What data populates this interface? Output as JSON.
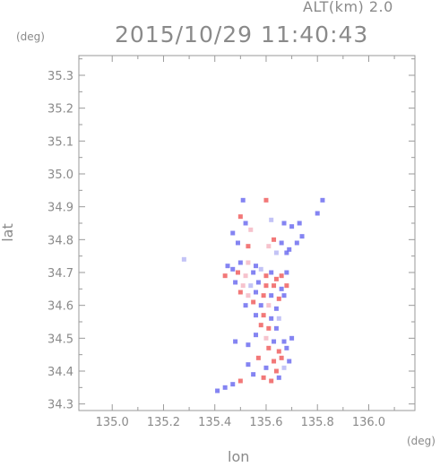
{
  "header": {
    "alt_label": "ALT(km)",
    "alt_value": "2.0",
    "timestamp": "2015/10/29 11:40:43"
  },
  "colors": {
    "axis": "#9a9a9a",
    "positive": "#f06060",
    "negative": "#6f6ff0",
    "weak_pos": "#f4b8c4",
    "weak_neg": "#b8b8f4"
  },
  "chart_data": {
    "type": "scatter",
    "title": "",
    "xlabel": "lon",
    "ylabel": "lat",
    "x_unit": "(deg)",
    "y_unit": "(deg)",
    "xlim": [
      134.87,
      136.18
    ],
    "ylim": [
      34.28,
      35.36
    ],
    "xticks": [
      135.0,
      135.2,
      135.4,
      135.6,
      135.8,
      136.0
    ],
    "xtick_labels": [
      "135.0",
      "135.2",
      "135.4",
      "135.6",
      "135.8",
      "136.0"
    ],
    "yticks": [
      34.3,
      34.4,
      34.5,
      34.6,
      34.7,
      34.8,
      34.9,
      35.0,
      35.1,
      35.2,
      35.3
    ],
    "ytick_labels": [
      "34.3",
      "34.4",
      "34.5",
      "34.6",
      "34.7",
      "34.8",
      "34.9",
      "35.0",
      "35.1",
      "35.2",
      "35.3"
    ],
    "grid": false,
    "points": [
      {
        "x": 135.51,
        "y": 34.92,
        "v": -1
      },
      {
        "x": 135.6,
        "y": 34.92,
        "v": 1
      },
      {
        "x": 135.82,
        "y": 34.92,
        "v": -1
      },
      {
        "x": 135.8,
        "y": 34.88,
        "v": -1
      },
      {
        "x": 135.5,
        "y": 34.87,
        "v": 1
      },
      {
        "x": 135.52,
        "y": 34.85,
        "v": -1
      },
      {
        "x": 135.54,
        "y": 34.83,
        "v": 0.5
      },
      {
        "x": 135.47,
        "y": 34.82,
        "v": -1
      },
      {
        "x": 135.49,
        "y": 34.79,
        "v": -1
      },
      {
        "x": 135.53,
        "y": 34.78,
        "v": 1
      },
      {
        "x": 135.62,
        "y": 34.86,
        "v": -0.5
      },
      {
        "x": 135.67,
        "y": 34.85,
        "v": -1
      },
      {
        "x": 135.7,
        "y": 34.84,
        "v": -1
      },
      {
        "x": 135.73,
        "y": 34.85,
        "v": -1
      },
      {
        "x": 135.63,
        "y": 34.8,
        "v": 1
      },
      {
        "x": 135.61,
        "y": 34.78,
        "v": 0.5
      },
      {
        "x": 135.66,
        "y": 34.79,
        "v": -1
      },
      {
        "x": 135.69,
        "y": 34.77,
        "v": -1
      },
      {
        "x": 135.72,
        "y": 34.79,
        "v": -1
      },
      {
        "x": 135.74,
        "y": 34.81,
        "v": -1
      },
      {
        "x": 135.68,
        "y": 34.76,
        "v": -1
      },
      {
        "x": 135.64,
        "y": 34.76,
        "v": -0.5
      },
      {
        "x": 135.28,
        "y": 34.74,
        "v": -0.5
      },
      {
        "x": 135.47,
        "y": 34.71,
        "v": -1
      },
      {
        "x": 135.44,
        "y": 34.69,
        "v": 1
      },
      {
        "x": 135.45,
        "y": 34.72,
        "v": -1
      },
      {
        "x": 135.5,
        "y": 34.73,
        "v": -1
      },
      {
        "x": 135.53,
        "y": 34.73,
        "v": 0.5
      },
      {
        "x": 135.56,
        "y": 34.72,
        "v": -1
      },
      {
        "x": 135.49,
        "y": 34.7,
        "v": 1
      },
      {
        "x": 135.52,
        "y": 34.69,
        "v": 0.5
      },
      {
        "x": 135.55,
        "y": 34.7,
        "v": -1
      },
      {
        "x": 135.58,
        "y": 34.71,
        "v": -0.5
      },
      {
        "x": 135.6,
        "y": 34.69,
        "v": 1
      },
      {
        "x": 135.62,
        "y": 34.7,
        "v": -1
      },
      {
        "x": 135.64,
        "y": 34.68,
        "v": 1
      },
      {
        "x": 135.66,
        "y": 34.69,
        "v": 1
      },
      {
        "x": 135.68,
        "y": 34.7,
        "v": -1
      },
      {
        "x": 135.48,
        "y": 34.67,
        "v": -1
      },
      {
        "x": 135.51,
        "y": 34.66,
        "v": 0.5
      },
      {
        "x": 135.54,
        "y": 34.66,
        "v": -0.5
      },
      {
        "x": 135.57,
        "y": 34.67,
        "v": -1
      },
      {
        "x": 135.6,
        "y": 34.66,
        "v": 1
      },
      {
        "x": 135.63,
        "y": 34.66,
        "v": 1
      },
      {
        "x": 135.66,
        "y": 34.65,
        "v": -1
      },
      {
        "x": 135.68,
        "y": 34.66,
        "v": 1
      },
      {
        "x": 135.5,
        "y": 34.64,
        "v": 1
      },
      {
        "x": 135.53,
        "y": 34.63,
        "v": 0.5
      },
      {
        "x": 135.56,
        "y": 34.64,
        "v": -1
      },
      {
        "x": 135.59,
        "y": 34.63,
        "v": 1
      },
      {
        "x": 135.62,
        "y": 34.63,
        "v": -1
      },
      {
        "x": 135.65,
        "y": 34.62,
        "v": 1
      },
      {
        "x": 135.67,
        "y": 34.63,
        "v": -1
      },
      {
        "x": 135.52,
        "y": 34.6,
        "v": -1
      },
      {
        "x": 135.55,
        "y": 34.61,
        "v": 1
      },
      {
        "x": 135.58,
        "y": 34.6,
        "v": -1
      },
      {
        "x": 135.61,
        "y": 34.6,
        "v": 0.5
      },
      {
        "x": 135.64,
        "y": 34.59,
        "v": -1
      },
      {
        "x": 135.56,
        "y": 34.57,
        "v": -1
      },
      {
        "x": 135.59,
        "y": 34.57,
        "v": 1
      },
      {
        "x": 135.62,
        "y": 34.56,
        "v": -1
      },
      {
        "x": 135.65,
        "y": 34.56,
        "v": -0.5
      },
      {
        "x": 135.58,
        "y": 34.54,
        "v": 1
      },
      {
        "x": 135.61,
        "y": 34.53,
        "v": 1
      },
      {
        "x": 135.64,
        "y": 34.53,
        "v": -1
      },
      {
        "x": 135.56,
        "y": 34.51,
        "v": -1
      },
      {
        "x": 135.6,
        "y": 34.5,
        "v": 0.5
      },
      {
        "x": 135.63,
        "y": 34.49,
        "v": -1
      },
      {
        "x": 135.67,
        "y": 34.49,
        "v": -1
      },
      {
        "x": 135.7,
        "y": 34.5,
        "v": -1
      },
      {
        "x": 135.48,
        "y": 34.49,
        "v": -1
      },
      {
        "x": 135.53,
        "y": 34.48,
        "v": -1
      },
      {
        "x": 135.61,
        "y": 34.47,
        "v": 1
      },
      {
        "x": 135.65,
        "y": 34.46,
        "v": 1
      },
      {
        "x": 135.68,
        "y": 34.47,
        "v": -1
      },
      {
        "x": 135.66,
        "y": 34.44,
        "v": 1
      },
      {
        "x": 135.63,
        "y": 34.43,
        "v": 1
      },
      {
        "x": 135.69,
        "y": 34.43,
        "v": -1
      },
      {
        "x": 135.6,
        "y": 34.41,
        "v": -1
      },
      {
        "x": 135.64,
        "y": 34.4,
        "v": 1
      },
      {
        "x": 135.67,
        "y": 34.41,
        "v": -0.5
      },
      {
        "x": 135.55,
        "y": 34.39,
        "v": -1
      },
      {
        "x": 135.59,
        "y": 34.38,
        "v": 1
      },
      {
        "x": 135.62,
        "y": 34.37,
        "v": 1
      },
      {
        "x": 135.65,
        "y": 34.38,
        "v": -1
      },
      {
        "x": 135.5,
        "y": 34.37,
        "v": 1
      },
      {
        "x": 135.47,
        "y": 34.36,
        "v": -1
      },
      {
        "x": 135.44,
        "y": 34.35,
        "v": -1
      },
      {
        "x": 135.41,
        "y": 34.34,
        "v": -1
      },
      {
        "x": 135.53,
        "y": 34.42,
        "v": -1
      },
      {
        "x": 135.57,
        "y": 34.44,
        "v": 1
      }
    ]
  }
}
